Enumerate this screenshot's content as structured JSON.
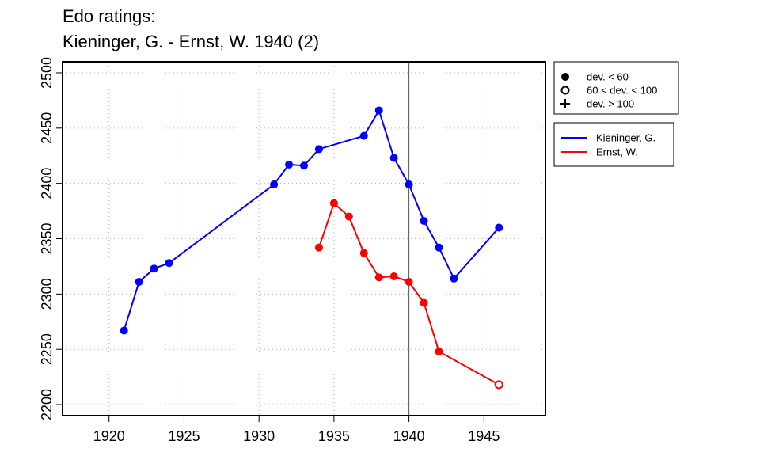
{
  "title_line1": "Edo ratings:",
  "title_line2": "Kieninger, G. - Ernst, W. 1940 (2)",
  "chart_data": {
    "type": "line",
    "title": "Edo ratings: Kieninger, G. - Ernst, W. 1940 (2)",
    "xlabel": "",
    "ylabel": "",
    "xlim": [
      1916.9,
      1949.1
    ],
    "ylim": [
      2190,
      2510
    ],
    "xticks": [
      1920,
      1925,
      1930,
      1935,
      1940,
      1945
    ],
    "yticks": [
      2200,
      2250,
      2300,
      2350,
      2400,
      2450,
      2500
    ],
    "grid": true,
    "vline": 1940,
    "series": [
      {
        "name": "Kieninger, G.",
        "color": "#0000ff",
        "x": [
          1921,
          1922,
          1923,
          1924,
          1931,
          1932,
          1933,
          1934,
          1937,
          1938,
          1939,
          1940,
          1941,
          1942,
          1943,
          1946
        ],
        "y": [
          2267,
          2311,
          2323,
          2328,
          2399,
          2417,
          2416,
          2431,
          2443,
          2466,
          2423,
          2399,
          2366,
          2342,
          2314,
          2360
        ],
        "markers": [
          "dot",
          "dot",
          "dot",
          "dot",
          "dot",
          "dot",
          "dot",
          "dot",
          "dot",
          "dot",
          "dot",
          "dot",
          "dot",
          "dot",
          "dot",
          "dot"
        ]
      },
      {
        "name": "Ernst, W.",
        "color": "#ff0000",
        "x": [
          1934,
          1935,
          1936,
          1937,
          1938,
          1939,
          1940,
          1941,
          1942,
          1946
        ],
        "y": [
          2342,
          2382,
          2370,
          2337,
          2315,
          2316,
          2311,
          2292,
          2248,
          2218
        ],
        "markers": [
          "dot",
          "dot",
          "dot",
          "dot",
          "dot",
          "dot",
          "dot",
          "dot",
          "dot",
          "circle"
        ]
      }
    ],
    "legend_markers": [
      {
        "symbol": "dot",
        "label": "dev. < 60"
      },
      {
        "symbol": "circle",
        "label": "60 < dev. < 100"
      },
      {
        "symbol": "plus",
        "label": "dev. > 100"
      }
    ],
    "legend_placement": "right"
  }
}
